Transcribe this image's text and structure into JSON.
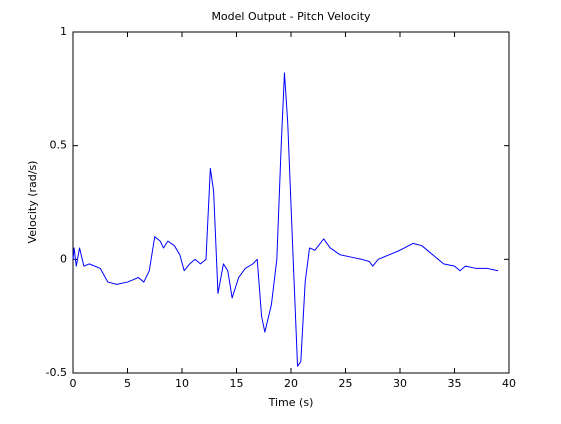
{
  "chart_data": {
    "type": "line",
    "title": "Model Output - Pitch Velocity",
    "x_label": "Time (s)",
    "y_label": "Velocity (rad/s)",
    "xlim": [
      0,
      40
    ],
    "xticks": [
      0,
      5,
      10,
      15,
      20,
      25,
      30,
      35,
      40
    ],
    "ylim": [
      -0.5,
      1
    ],
    "yticks": [
      -0.5,
      0,
      0.5,
      1
    ],
    "grid": false,
    "x": [
      0,
      0.1,
      0.3,
      0.6,
      1,
      1.5,
      2.5,
      3.2,
      4,
      5,
      5.5,
      6,
      6.5,
      7,
      7.5,
      8,
      8.3,
      8.7,
      9.3,
      9.8,
      10.2,
      10.7,
      11.2,
      11.7,
      12.2,
      12.6,
      12.9,
      13.3,
      13.8,
      14.2,
      14.6,
      15.2,
      15.8,
      16.5,
      16.9,
      17.3,
      17.6,
      18.2,
      18.7,
      19.1,
      19.4,
      19.7,
      20.2,
      20.6,
      20.9,
      21.3,
      21.7,
      22.2,
      23,
      23.6,
      24.5,
      25.5,
      26.5,
      27.2,
      27.5,
      28,
      29,
      30,
      31.2,
      32,
      33,
      34,
      35,
      35.5,
      36,
      37,
      38,
      39
    ],
    "series": [
      {
        "name": "Pitch Velocity",
        "color": "#0000ff",
        "values": [
          0,
          0.05,
          -0.03,
          0.05,
          -0.03,
          -0.02,
          -0.04,
          -0.1,
          -0.11,
          -0.1,
          -0.09,
          -0.08,
          -0.1,
          -0.05,
          0.1,
          0.08,
          0.05,
          0.08,
          0.06,
          0.02,
          -0.05,
          -0.02,
          0,
          -0.02,
          0,
          0.4,
          0.3,
          -0.15,
          -0.02,
          -0.05,
          -0.17,
          -0.08,
          -0.04,
          -0.02,
          0,
          -0.25,
          -0.32,
          -0.2,
          0,
          0.5,
          0.82,
          0.6,
          0,
          -0.47,
          -0.45,
          -0.1,
          0.05,
          0.04,
          0.09,
          0.05,
          0.02,
          0.01,
          0,
          -0.01,
          -0.03,
          0,
          0.02,
          0.04,
          0.07,
          0.06,
          0.02,
          -0.02,
          -0.03,
          -0.05,
          -0.03,
          -0.04,
          -0.04,
          -0.05
        ]
      }
    ]
  }
}
